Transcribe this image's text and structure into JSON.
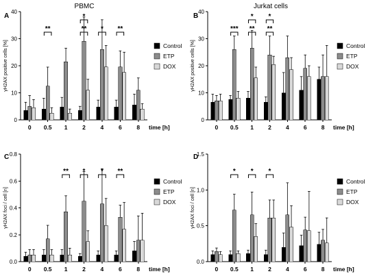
{
  "colors": {
    "Control": "#000000",
    "ETP": "#8c8c8c",
    "DOX": "#d9d9d9"
  },
  "chart_data": [
    {
      "type": "bar",
      "panel_label": "A",
      "title": "PBMC",
      "ylabel": "γH2AX positive cells [%]",
      "xlabel": "time [h]",
      "categories": [
        "0",
        "0.5",
        "1",
        "2",
        "4",
        "6",
        "8"
      ],
      "ylim": [
        0,
        40
      ],
      "yticks": [
        "0",
        "10",
        "20",
        "30",
        "40"
      ],
      "series": [
        {
          "name": "Control",
          "values": [
            3.5,
            4,
            4.8,
            3.5,
            4.8,
            4.8,
            5.5
          ],
          "err": [
            3,
            4,
            3.5,
            1.5,
            2.5,
            2.5,
            4
          ]
        },
        {
          "name": "ETP",
          "values": [
            5,
            12.5,
            21.5,
            29,
            26,
            19.5,
            11
          ],
          "err": [
            4,
            7,
            5,
            9,
            11,
            6,
            4.5
          ]
        },
        {
          "name": "DOX",
          "values": [
            4.5,
            2.5,
            2.5,
            11,
            19.5,
            17.5,
            4
          ],
          "err": [
            3,
            2,
            1.5,
            4,
            8,
            7.5,
            2
          ]
        }
      ],
      "significance": [
        {
          "from": 1,
          "to": 1,
          "label": "**",
          "level": 0
        },
        {
          "from": 3,
          "to": 3,
          "label": "**",
          "level": 0
        },
        {
          "from": 3,
          "to": 3,
          "label": "*",
          "level": 1
        },
        {
          "from": 4,
          "to": 4,
          "label": "*",
          "level": 0
        },
        {
          "from": 5,
          "to": 5,
          "label": "**",
          "level": 0
        }
      ]
    },
    {
      "type": "bar",
      "panel_label": "B",
      "title": "Jurkat cells",
      "ylabel": "γH2AX positive cells [%]",
      "xlabel": "time [h]",
      "categories": [
        "0",
        "0.5",
        "1",
        "2",
        "4",
        "6",
        "8"
      ],
      "ylim": [
        0,
        40
      ],
      "yticks": [
        "0",
        "10",
        "20",
        "30",
        "40"
      ],
      "series": [
        {
          "name": "Control",
          "values": [
            6.5,
            7.5,
            8,
            6.5,
            10,
            11,
            15
          ],
          "err": [
            3,
            1.5,
            2.5,
            2,
            7.5,
            5,
            4.5
          ]
        },
        {
          "name": "ETP",
          "values": [
            7,
            26,
            26.5,
            24,
            23,
            19,
            16
          ],
          "err": [
            2,
            5,
            6.5,
            7,
            8,
            5,
            8
          ]
        },
        {
          "name": "DOX",
          "values": [
            7,
            8,
            15.5,
            20.5,
            18.5,
            16,
            16
          ],
          "err": [
            2.5,
            2.5,
            4,
            3,
            4.5,
            4,
            11.5
          ]
        }
      ],
      "significance": [
        {
          "from": 1,
          "to": 1,
          "label": "***",
          "level": 0
        },
        {
          "from": 2,
          "to": 2,
          "label": "**",
          "level": 0
        },
        {
          "from": 2,
          "to": 2,
          "label": "*",
          "level": 1
        },
        {
          "from": 3,
          "to": 3,
          "label": "**",
          "level": 0
        },
        {
          "from": 3,
          "to": 3,
          "label": "*",
          "level": 1
        }
      ]
    },
    {
      "type": "bar",
      "panel_label": "C",
      "title": "",
      "ylabel": "γH2AX foci / cell [n]",
      "xlabel": "time [h]",
      "categories": [
        "0",
        "0.5",
        "1",
        "2",
        "4",
        "6",
        "8"
      ],
      "ylim": [
        0,
        0.8
      ],
      "yticks": [
        "0.0",
        "0.2",
        "0.4",
        "0.6",
        "0.8"
      ],
      "series": [
        {
          "name": "Control",
          "values": [
            0.04,
            0.05,
            0.05,
            0.04,
            0.05,
            0.05,
            0.08
          ],
          "err": [
            0.03,
            0.04,
            0.04,
            0.02,
            0.03,
            0.03,
            0.07
          ]
        },
        {
          "name": "ETP",
          "values": [
            0.05,
            0.17,
            0.37,
            0.45,
            0.43,
            0.33,
            0.16
          ],
          "err": [
            0.04,
            0.1,
            0.12,
            0.22,
            0.26,
            0.09,
            0.18
          ]
        },
        {
          "name": "DOX",
          "values": [
            0.05,
            0.05,
            0.05,
            0.15,
            0.27,
            0.24,
            0.16
          ],
          "err": [
            0.04,
            0.04,
            0.05,
            0.08,
            0.2,
            0.2,
            0.2
          ]
        }
      ],
      "significance": [
        {
          "from": 2,
          "to": 2,
          "label": "**",
          "level": 0
        },
        {
          "from": 3,
          "to": 3,
          "label": "*",
          "level": 0
        },
        {
          "from": 4,
          "to": 4,
          "label": "*",
          "level": 0
        },
        {
          "from": 5,
          "to": 5,
          "label": "**",
          "level": 0
        }
      ]
    },
    {
      "type": "bar",
      "panel_label": "D",
      "title": "",
      "ylabel": "γH2AX foci / cell [n]",
      "xlabel": "time [h]",
      "categories": [
        "0",
        "0.5",
        "1",
        "2",
        "4",
        "6",
        "8"
      ],
      "ylim": [
        0,
        1.5
      ],
      "yticks": [
        "0.0",
        "0.5",
        "1.0",
        "1.5"
      ],
      "series": [
        {
          "name": "Control",
          "values": [
            0.1,
            0.1,
            0.11,
            0.1,
            0.2,
            0.22,
            0.24
          ],
          "err": [
            0.05,
            0.05,
            0.05,
            0.06,
            0.2,
            0.15,
            0.17
          ]
        },
        {
          "name": "ETP",
          "values": [
            0.14,
            0.72,
            0.65,
            0.61,
            0.65,
            0.44,
            0.3
          ],
          "err": [
            0.05,
            0.22,
            0.32,
            0.25,
            0.45,
            0.18,
            0.15
          ]
        },
        {
          "name": "DOX",
          "values": [
            0.1,
            0.11,
            0.35,
            0.61,
            0.48,
            0.43,
            0.26
          ],
          "err": [
            0.04,
            0.04,
            0.18,
            0.25,
            0.3,
            0.55,
            0.35
          ]
        }
      ],
      "significance": [
        {
          "from": 1,
          "to": 1,
          "label": "*",
          "level": 0
        },
        {
          "from": 2,
          "to": 2,
          "label": "*",
          "level": 0
        },
        {
          "from": 3,
          "to": 3,
          "label": "*",
          "level": 0
        }
      ]
    }
  ]
}
